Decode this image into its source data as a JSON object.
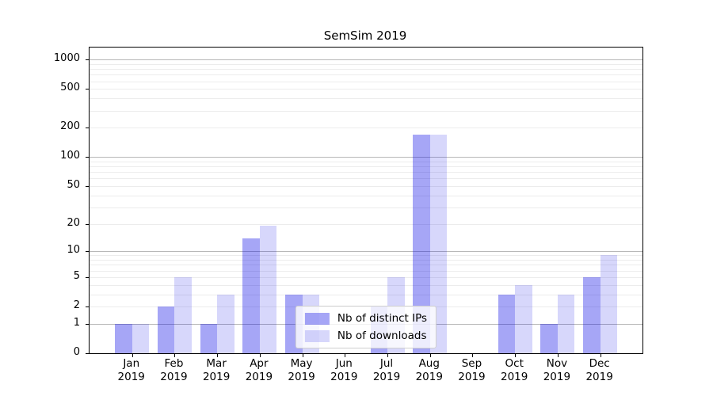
{
  "chart_data": {
    "type": "bar",
    "title": "SemSim 2019",
    "year_label": "2019",
    "categories": [
      "Jan",
      "Feb",
      "Mar",
      "Apr",
      "May",
      "Jun",
      "Jul",
      "Aug",
      "Sep",
      "Oct",
      "Nov",
      "Dec"
    ],
    "series": [
      {
        "name": "Nb of distinct IPs",
        "color": "#0000e659",
        "values": [
          1,
          2,
          1,
          14,
          3,
          0,
          2,
          170,
          0,
          3,
          1,
          5
        ]
      },
      {
        "name": "Nb of downloads",
        "color": "#0000e628",
        "values": [
          1,
          5,
          3,
          19,
          3,
          0,
          5,
          170,
          0,
          4,
          3,
          9
        ]
      }
    ],
    "yscale": "log1p",
    "y_ticks": [
      0,
      1,
      2,
      5,
      10,
      20,
      50,
      100,
      200,
      500,
      1000
    ],
    "y_major_gridlines": [
      1,
      10,
      100,
      1000
    ],
    "ylim": [
      0,
      1325
    ],
    "grid": true,
    "legend_position": "lower center",
    "colors": {
      "major_grid": "#b8b8b8",
      "minor_grid": "#ececec",
      "axis": "#000000",
      "background": "#ffffff",
      "legend_border": "#cfcfcf"
    }
  }
}
